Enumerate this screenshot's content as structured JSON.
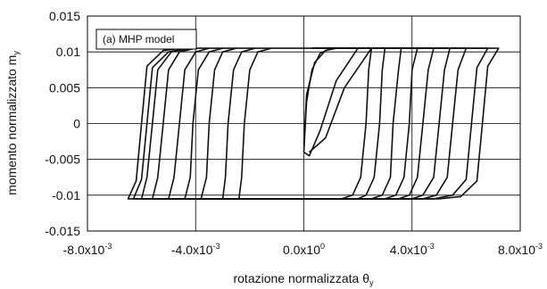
{
  "chart_data": {
    "type": "line",
    "title": "",
    "xlabel": "rotazione normalizzata θ",
    "xlabel_sub": "y",
    "ylabel": "momento normalizzato m",
    "ylabel_sub": "y",
    "annotation": "(a) MHP model",
    "xlim": [
      -0.008,
      0.008
    ],
    "ylim": [
      -0.015,
      0.015
    ],
    "grid": true,
    "x_ticks": [
      {
        "value": -0.008,
        "mantissa": "-8.0x10",
        "exp": "-3"
      },
      {
        "value": -0.004,
        "mantissa": "-4.0x10",
        "exp": "-3"
      },
      {
        "value": 0.0,
        "mantissa": "0.0x10",
        "exp": "0"
      },
      {
        "value": 0.004,
        "mantissa": "4.0x10",
        "exp": "-3"
      },
      {
        "value": 0.008,
        "mantissa": "8.0x10",
        "exp": "-3"
      }
    ],
    "y_ticks": [
      {
        "value": 0.015,
        "label": "0.015"
      },
      {
        "value": 0.01,
        "label": "0.01"
      },
      {
        "value": 0.005,
        "label": "0.005"
      },
      {
        "value": 0.0,
        "label": "0"
      },
      {
        "value": -0.005,
        "label": "-0.005"
      },
      {
        "value": -0.01,
        "label": "-0.01"
      },
      {
        "value": -0.015,
        "label": "-0.015"
      }
    ],
    "series": [
      {
        "points": [
          [
            0.0,
            -0.004
          ],
          [
            0.0001,
            0.003
          ],
          [
            0.0003,
            0.0075
          ],
          [
            0.0006,
            0.0098
          ],
          [
            0.001,
            0.0105
          ],
          [
            0.002,
            0.0105
          ],
          [
            0.0012,
            0.006
          ],
          [
            0.0006,
            -0.001
          ],
          [
            0.0002,
            -0.0045
          ],
          [
            0.0,
            -0.004
          ]
        ]
      },
      {
        "points": [
          [
            0.0,
            -0.003
          ],
          [
            0.0001,
            0.004
          ],
          [
            0.0004,
            0.0085
          ],
          [
            0.0008,
            0.0102
          ],
          [
            0.0012,
            0.0105
          ],
          [
            0.0025,
            0.0105
          ],
          [
            0.0015,
            0.005
          ],
          [
            0.0008,
            -0.002
          ],
          [
            0.0002,
            -0.004
          ]
        ]
      },
      {
        "points": [
          [
            0.0003,
            0.0105
          ],
          [
            0.0072,
            0.0105
          ],
          [
            0.0068,
            0.008
          ],
          [
            0.0066,
            0.0
          ],
          [
            0.0064,
            -0.008
          ],
          [
            0.0058,
            -0.0102
          ],
          [
            0.005,
            -0.0105
          ],
          [
            -0.0065,
            -0.0105
          ],
          [
            -0.0062,
            -0.008
          ],
          [
            -0.006,
            0.0
          ],
          [
            -0.0058,
            0.008
          ],
          [
            -0.0052,
            0.0102
          ],
          [
            -0.0045,
            0.0105
          ],
          [
            0.0003,
            0.0105
          ]
        ]
      },
      {
        "points": [
          [
            0.0003,
            0.0105
          ],
          [
            0.0068,
            0.0105
          ],
          [
            0.0064,
            0.0078
          ],
          [
            0.0062,
            0.0
          ],
          [
            0.006,
            -0.0078
          ],
          [
            0.0055,
            -0.01
          ],
          [
            0.0048,
            -0.0105
          ],
          [
            -0.0063,
            -0.0105
          ],
          [
            -0.006,
            -0.0078
          ],
          [
            -0.0058,
            0.0
          ],
          [
            -0.0056,
            0.0078
          ],
          [
            -0.005,
            0.01
          ],
          [
            -0.0043,
            0.0105
          ]
        ]
      },
      {
        "points": [
          [
            0.0003,
            0.0105
          ],
          [
            0.006,
            0.0105
          ],
          [
            0.0057,
            0.0075
          ],
          [
            0.0055,
            0.0
          ],
          [
            0.0053,
            -0.0075
          ],
          [
            0.0049,
            -0.01
          ],
          [
            0.0044,
            -0.0105
          ],
          [
            -0.006,
            -0.0105
          ],
          [
            -0.0058,
            -0.0075
          ],
          [
            -0.0056,
            0.0
          ],
          [
            -0.0054,
            0.0075
          ],
          [
            -0.0049,
            0.01
          ],
          [
            -0.0042,
            0.0105
          ]
        ]
      },
      {
        "points": [
          [
            0.0003,
            0.0105
          ],
          [
            0.0054,
            0.0105
          ],
          [
            0.0052,
            0.0075
          ],
          [
            0.005,
            0.0
          ],
          [
            0.0048,
            -0.0075
          ],
          [
            0.0044,
            -0.01
          ],
          [
            0.004,
            -0.0105
          ],
          [
            -0.0056,
            -0.0105
          ],
          [
            -0.0054,
            -0.0075
          ],
          [
            -0.0052,
            0.0
          ],
          [
            -0.005,
            0.0075
          ],
          [
            -0.0046,
            0.01
          ],
          [
            -0.004,
            0.0105
          ]
        ]
      },
      {
        "points": [
          [
            0.0003,
            0.0105
          ],
          [
            0.0048,
            0.0105
          ],
          [
            0.0046,
            0.0075
          ],
          [
            0.0044,
            0.0
          ],
          [
            0.0042,
            -0.0075
          ],
          [
            0.0039,
            -0.01
          ],
          [
            0.0035,
            -0.0105
          ],
          [
            -0.005,
            -0.0105
          ],
          [
            -0.0048,
            -0.0075
          ],
          [
            -0.0046,
            0.0
          ],
          [
            -0.0044,
            0.0075
          ],
          [
            -0.004,
            0.01
          ],
          [
            -0.0035,
            0.0105
          ]
        ]
      },
      {
        "points": [
          [
            0.0003,
            0.0105
          ],
          [
            0.0042,
            0.0105
          ],
          [
            0.004,
            0.0075
          ],
          [
            0.0039,
            0.0
          ],
          [
            0.0037,
            -0.0075
          ],
          [
            0.0034,
            -0.01
          ],
          [
            0.003,
            -0.0105
          ],
          [
            -0.0044,
            -0.0105
          ],
          [
            -0.0042,
            -0.0075
          ],
          [
            -0.0041,
            0.0
          ],
          [
            -0.0039,
            0.0075
          ],
          [
            -0.0035,
            0.01
          ],
          [
            -0.003,
            0.0105
          ]
        ]
      },
      {
        "points": [
          [
            0.0003,
            0.0105
          ],
          [
            0.0036,
            0.0105
          ],
          [
            0.0035,
            0.0075
          ],
          [
            0.0033,
            0.0
          ],
          [
            0.0032,
            -0.0075
          ],
          [
            0.0029,
            -0.01
          ],
          [
            0.0025,
            -0.0105
          ],
          [
            -0.0038,
            -0.0105
          ],
          [
            -0.0036,
            -0.0075
          ],
          [
            -0.0035,
            0.0
          ],
          [
            -0.0033,
            0.0075
          ],
          [
            -0.003,
            0.01
          ],
          [
            -0.0025,
            0.0105
          ]
        ]
      },
      {
        "points": [
          [
            0.0003,
            0.0105
          ],
          [
            0.003,
            0.0105
          ],
          [
            0.0029,
            0.0075
          ],
          [
            0.0028,
            0.0
          ],
          [
            0.0026,
            -0.0075
          ],
          [
            0.0023,
            -0.01
          ],
          [
            0.002,
            -0.0105
          ],
          [
            -0.003,
            -0.0105
          ],
          [
            -0.0029,
            -0.0075
          ],
          [
            -0.0028,
            0.0
          ],
          [
            -0.0026,
            0.0075
          ],
          [
            -0.0023,
            0.01
          ],
          [
            -0.0018,
            0.0105
          ]
        ]
      },
      {
        "points": [
          [
            0.0003,
            0.0105
          ],
          [
            0.0025,
            0.0105
          ],
          [
            0.0024,
            0.0075
          ],
          [
            0.0023,
            0.0
          ],
          [
            0.0021,
            -0.0075
          ],
          [
            0.0018,
            -0.01
          ],
          [
            0.0014,
            -0.0105
          ],
          [
            -0.0024,
            -0.0105
          ],
          [
            -0.0023,
            -0.0075
          ],
          [
            -0.0022,
            0.0
          ],
          [
            -0.002,
            0.0075
          ],
          [
            -0.0017,
            0.01
          ],
          [
            -0.0012,
            0.0105
          ]
        ]
      }
    ]
  }
}
